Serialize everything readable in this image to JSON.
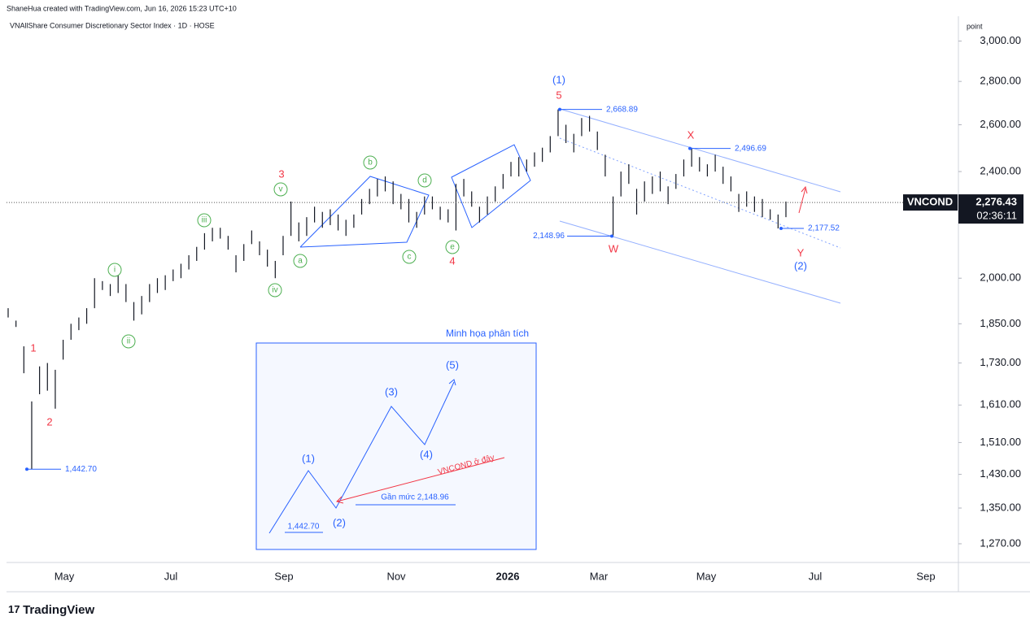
{
  "header": {
    "credit": "ShaneHua created with TradingView.com, Jun 16, 2026 15:23 UTC+10",
    "title": "VNAllShare Consumer Discretionary Sector Index · 1D · HOSE"
  },
  "chart_data": {
    "type": "ohlc",
    "log_scale": true,
    "color": "#131722",
    "axis_unit": "point",
    "ticker": "VNCOND",
    "last": {
      "value": 2276.43,
      "label": "2,276.43"
    },
    "countdown": "02:36:11",
    "ylim": [
      1230,
      3130
    ],
    "yticks": [
      {
        "value": 3000,
        "label": "3,000.00"
      },
      {
        "value": 2800,
        "label": "2,800.00"
      },
      {
        "value": 2600,
        "label": "2,600.00"
      },
      {
        "value": 2400,
        "label": "2,400.00"
      },
      {
        "value": 2000,
        "label": "2,000.00"
      },
      {
        "value": 1850,
        "label": "1,850.00"
      },
      {
        "value": 1730,
        "label": "1,730.00"
      },
      {
        "value": 1610,
        "label": "1,610.00"
      },
      {
        "value": 1510,
        "label": "1,510.00"
      },
      {
        "value": 1430,
        "label": "1,430.00"
      },
      {
        "value": 1350,
        "label": "1,350.00"
      },
      {
        "value": 1270,
        "label": "1,270.00"
      }
    ],
    "xtick_labels": [
      "May",
      "Jul",
      "Sep",
      "Nov",
      "2026",
      "Mar",
      "May",
      "Jul",
      "Sep"
    ],
    "high": [
      1900,
      1860,
      1780,
      1620,
      1720,
      1730,
      1710,
      1800,
      1850,
      1870,
      1900,
      2000,
      1990,
      1980,
      2010,
      1980,
      1920,
      1940,
      1980,
      2000,
      2010,
      2030,
      2050,
      2080,
      2110,
      2160,
      2180,
      2180,
      2150,
      2080,
      2120,
      2170,
      2130,
      2100,
      2060,
      2150,
      2280,
      2200,
      2220,
      2260,
      2240,
      2250,
      2230,
      2210,
      2230,
      2290,
      2330,
      2370,
      2380,
      2360,
      2310,
      2290,
      2240,
      2300,
      2300,
      2260,
      2250,
      2350,
      2370,
      2320,
      2260,
      2300,
      2340,
      2390,
      2440,
      2460,
      2450,
      2480,
      2500,
      2550,
      2668.89,
      2600,
      2560,
      2630,
      2640,
      2570,
      2470,
      2300,
      2400,
      2430,
      2330,
      2360,
      2380,
      2400,
      2340,
      2390,
      2450,
      2496.69,
      2460,
      2430,
      2470,
      2420,
      2380,
      2310,
      2320,
      2300,
      2290,
      2250,
      2230,
      2280
    ],
    "low": [
      1870,
      1840,
      1700,
      1442.7,
      1640,
      1650,
      1600,
      1740,
      1800,
      1830,
      1850,
      1900,
      1960,
      1940,
      1950,
      1920,
      1860,
      1880,
      1920,
      1950,
      1960,
      1990,
      2000,
      2030,
      2060,
      2100,
      2130,
      2140,
      2100,
      2020,
      2060,
      2120,
      2080,
      2040,
      2000,
      2080,
      2150,
      2130,
      2150,
      2200,
      2180,
      2190,
      2170,
      2150,
      2180,
      2230,
      2270,
      2300,
      2320,
      2270,
      2250,
      2200,
      2180,
      2230,
      2250,
      2210,
      2200,
      2170,
      2300,
      2260,
      2200,
      2230,
      2280,
      2330,
      2380,
      2380,
      2400,
      2420,
      2440,
      2480,
      2550,
      2520,
      2480,
      2550,
      2570,
      2490,
      2380,
      2148.96,
      2300,
      2350,
      2230,
      2280,
      2310,
      2320,
      2270,
      2330,
      2380,
      2420,
      2400,
      2380,
      2400,
      2350,
      2320,
      2240,
      2260,
      2240,
      2220,
      2210,
      2177.52,
      2220
    ],
    "price_labels": [
      {
        "value": 2668.89,
        "label": "2,668.89"
      },
      {
        "value": 2496.69,
        "label": "2,496.69"
      },
      {
        "value": 2148.96,
        "label": "2,148.96"
      },
      {
        "value": 2177.52,
        "label": "2,177.52"
      },
      {
        "value": 1442.7,
        "label": "1,442.70"
      }
    ],
    "waves": [
      {
        "text": "1",
        "color": "#f23645"
      },
      {
        "text": "2",
        "color": "#f23645"
      },
      {
        "text": "i",
        "color": "#4caf50"
      },
      {
        "text": "ii",
        "color": "#4caf50"
      },
      {
        "text": "iii",
        "color": "#4caf50"
      },
      {
        "text": "iv",
        "color": "#4caf50"
      },
      {
        "text": "v",
        "color": "#4caf50"
      },
      {
        "text": "3",
        "color": "#f23645"
      },
      {
        "text": "a",
        "color": "#4caf50"
      },
      {
        "text": "b",
        "color": "#4caf50"
      },
      {
        "text": "c",
        "color": "#4caf50"
      },
      {
        "text": "d",
        "color": "#4caf50"
      },
      {
        "text": "e",
        "color": "#4caf50"
      },
      {
        "text": "4",
        "color": "#f23645"
      },
      {
        "text": "(1)",
        "color": "#2962ff"
      },
      {
        "text": "5",
        "color": "#f23645"
      },
      {
        "text": "X",
        "color": "#f23645"
      },
      {
        "text": "W",
        "color": "#f23645"
      },
      {
        "text": "Y",
        "color": "#f23645"
      },
      {
        "text": "(2)",
        "color": "#2962ff"
      }
    ],
    "inset": {
      "title": "Minh họa phân tích",
      "waves": [
        "(1)",
        "(2)",
        "(3)",
        "(4)",
        "(5)"
      ],
      "start": "1,442.70",
      "near": "Gần mức 2,148.96",
      "here": "VNCOND ở đây"
    }
  },
  "footer": {
    "brand": "TradingView"
  }
}
